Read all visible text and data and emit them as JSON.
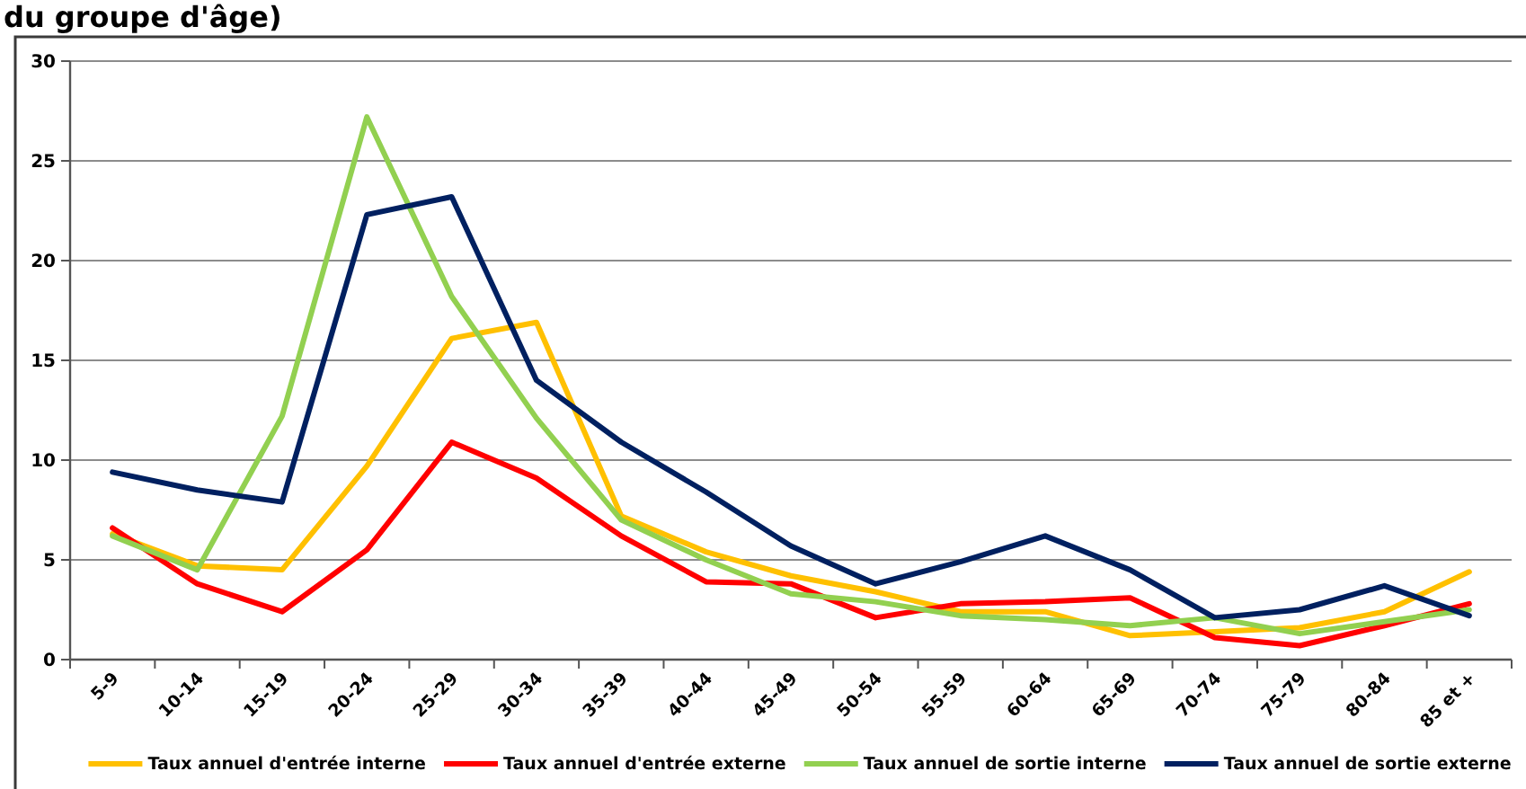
{
  "chart_data": {
    "type": "line",
    "title": "du groupe d'âge)",
    "categories": [
      "5-9",
      "10-14",
      "15-19",
      "20-24",
      "25-29",
      "30-34",
      "35-39",
      "40-44",
      "45-49",
      "50-54",
      "55-59",
      "60-64",
      "65-69",
      "70-74",
      "75-79",
      "80-84",
      "85 et +"
    ],
    "series": [
      {
        "name": "Taux annuel d'entrée interne",
        "color": "#ffc000",
        "values": [
          6.3,
          4.7,
          4.5,
          9.7,
          16.1,
          16.9,
          7.2,
          5.4,
          4.2,
          3.4,
          2.4,
          2.4,
          1.2,
          1.4,
          1.6,
          2.4,
          4.4
        ]
      },
      {
        "name": "Taux annuel d'entrée externe",
        "color": "#ff0000",
        "values": [
          6.6,
          3.8,
          2.4,
          5.5,
          10.9,
          9.1,
          6.2,
          3.9,
          3.8,
          2.1,
          2.8,
          2.9,
          3.1,
          1.1,
          0.7,
          1.7,
          2.8
        ]
      },
      {
        "name": "Taux annuel de sortie interne",
        "color": "#92d050",
        "values": [
          6.2,
          4.5,
          12.2,
          27.2,
          18.2,
          12.1,
          7.0,
          5.0,
          3.3,
          2.9,
          2.2,
          2.0,
          1.7,
          2.1,
          1.3,
          1.9,
          2.5
        ]
      },
      {
        "name": "Taux annuel de sortie externe",
        "color": "#002060",
        "values": [
          9.4,
          8.5,
          7.9,
          22.3,
          23.2,
          14.0,
          10.9,
          8.4,
          5.7,
          3.8,
          4.9,
          6.2,
          4.5,
          2.1,
          2.5,
          3.7,
          2.2
        ]
      }
    ],
    "ylim": [
      0,
      30
    ],
    "yticks": [
      0,
      5,
      10,
      15,
      20,
      25,
      30
    ],
    "grid": "y",
    "legend": "bottom",
    "marker": "none"
  }
}
